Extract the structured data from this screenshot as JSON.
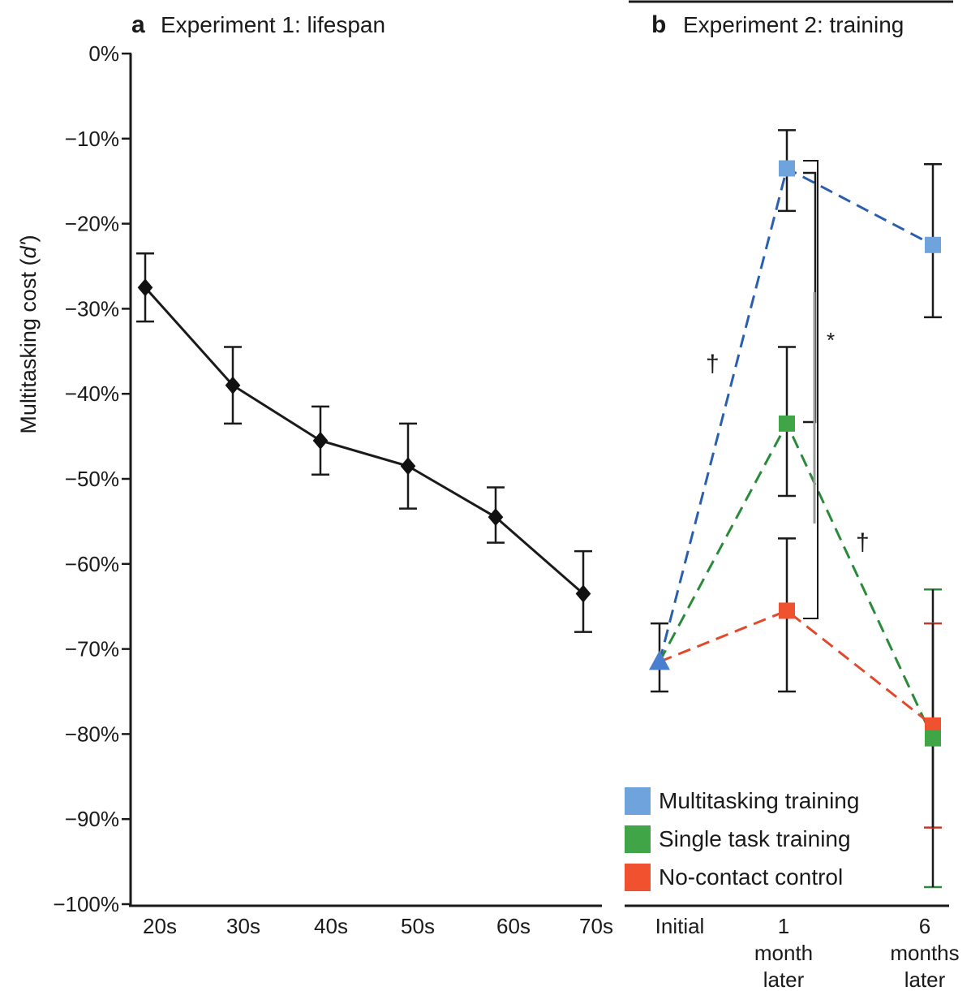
{
  "chart_data": [
    {
      "panel": "a",
      "title": "Experiment 1: lifespan",
      "type": "line",
      "ylabel_main": "Multitasking cost (",
      "ylabel_italic": "d'",
      "ylabel_end": ")",
      "ylim": [
        -100,
        0
      ],
      "y_ticks": [
        "0%",
        "−10%",
        "−20%",
        "−30%",
        "−40%",
        "−50%",
        "−60%",
        "−70%",
        "−80%",
        "−90%",
        "−100%"
      ],
      "y_tick_values": [
        0,
        -10,
        -20,
        -30,
        -40,
        -50,
        -60,
        -70,
        -80,
        -90,
        -100
      ],
      "categories": [
        "20s",
        "30s",
        "40s",
        "50s",
        "60s",
        "70s"
      ],
      "values": [
        -27.5,
        -39,
        -45.5,
        -48.5,
        -54.5,
        -63.5
      ],
      "err_upper": [
        -23.5,
        -34.5,
        -41.5,
        -43.5,
        -51,
        -58.5
      ],
      "err_lower": [
        -31.5,
        -43.5,
        -49.5,
        -53.5,
        -57.5,
        -68
      ]
    },
    {
      "panel": "b",
      "title": "Experiment 2: training",
      "type": "line",
      "ylim": [
        -100,
        0
      ],
      "categories": [
        "Initial",
        "1\nmonth\nlater",
        "6\nmonths\nlater"
      ],
      "category_lines": [
        [
          "Initial"
        ],
        [
          "1",
          "month",
          "later"
        ],
        [
          "6",
          "months",
          "later"
        ]
      ],
      "series": [
        {
          "name": "Multitasking training",
          "color": "#6fa3dc",
          "line_color": "#2a5fb0",
          "values": [
            -71.5,
            -13.5,
            -22.5
          ],
          "err_upper": [
            null,
            -9,
            -13
          ],
          "err_lower": [
            null,
            -18.5,
            -31
          ]
        },
        {
          "name": "Single task training",
          "color": "#3fa547",
          "line_color": "#2a8a3a",
          "values": [
            -71.5,
            -43.5,
            -80.5
          ],
          "err_upper": [
            -67,
            -34.5,
            -63
          ],
          "err_lower": [
            -75,
            -52,
            -98
          ]
        },
        {
          "name": "No-contact control",
          "color": "#f0522f",
          "line_color": "#e04a2c",
          "values": [
            -71.5,
            -65.5,
            -79
          ],
          "err_upper": [
            null,
            -57,
            -67
          ],
          "err_lower": [
            null,
            -75,
            -91
          ]
        }
      ],
      "annotations": [
        "†",
        "†",
        "*"
      ]
    }
  ]
}
